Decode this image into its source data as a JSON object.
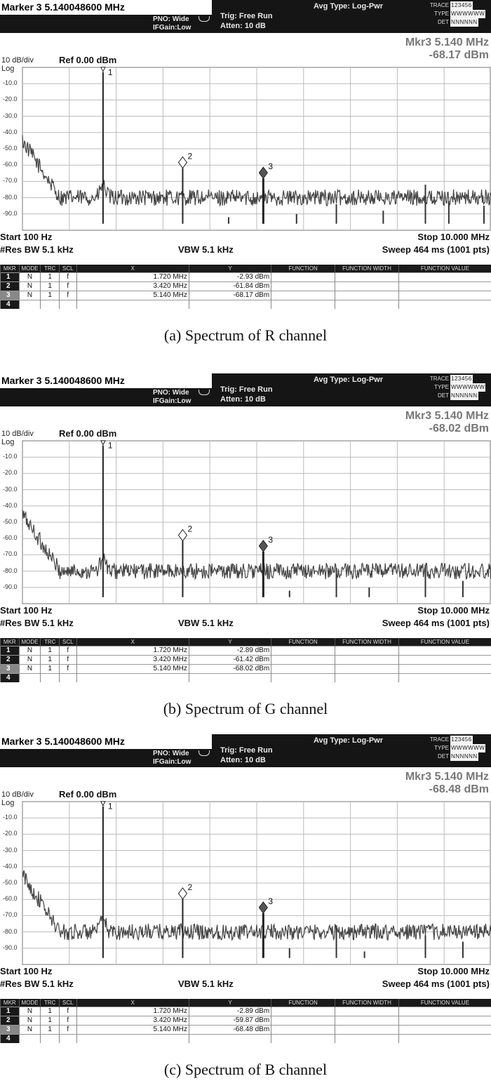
{
  "panels": [
    {
      "marker_title": "Marker 3 5.140048600 MHz",
      "pno": "PNO: Wide",
      "ifgain": "IFGain:Low",
      "trig": "Trig: Free Run",
      "atten": "Atten: 10 dB",
      "avg_type": "Avg Type: Log-Pwr",
      "trace_label": "TRACE",
      "trace_value": "123456",
      "type_label": "TYPE",
      "type_value": "WWWWWW",
      "det_label": "DET",
      "det_value": "NNNNNN",
      "mkr_readout_freq": "Mkr3 5.140 MHz",
      "mkr_readout_level": "-68.17 dBm",
      "scale": "10 dB/div",
      "log": "Log",
      "ref": "Ref 0.00 dBm",
      "y_tick_labels": [
        "-10.0",
        "-20.0",
        "-30.0",
        "-40.0",
        "-50.0",
        "-60.0",
        "-70.0",
        "-80.0",
        "-90.0"
      ],
      "start": "Start 100 Hz",
      "stop": "Stop 10.000 MHz",
      "res_bw": "#Res BW 5.1 kHz",
      "vbw": "VBW 5.1 kHz",
      "sweep": "Sweep  464 ms (1001 pts)",
      "table_headers": [
        "MKR",
        "MODE",
        "TRC",
        "SCL",
        "X",
        "Y",
        "FUNCTION",
        "FUNCTION WIDTH",
        "FUNCTION VALUE"
      ],
      "rows": [
        {
          "n": "1",
          "mode": "N",
          "trc": "1",
          "scl": "f",
          "x": "1.720 MHz",
          "y": "-2.93 dBm"
        },
        {
          "n": "2",
          "mode": "N",
          "trc": "1",
          "scl": "f",
          "x": "3.420 MHz",
          "y": "-61.84 dBm"
        },
        {
          "n": "3",
          "mode": "N",
          "trc": "1",
          "scl": "f",
          "x": "5.140 MHz",
          "y": "-68.17 dBm"
        },
        {
          "n": "4",
          "mode": "",
          "trc": "",
          "scl": "",
          "x": "",
          "y": ""
        }
      ],
      "caption": "(a) Spectrum of R channel"
    },
    {
      "marker_title": "Marker 3 5.140048600 MHz",
      "pno": "PNO: Wide",
      "ifgain": "IFGain:Low",
      "trig": "Trig: Free Run",
      "atten": "Atten: 10 dB",
      "avg_type": "Avg Type: Log-Pwr",
      "trace_label": "TRACE",
      "trace_value": "123456",
      "type_label": "TYPE",
      "type_value": "WWWWWW",
      "det_label": "DET",
      "det_value": "NNNNNN",
      "mkr_readout_freq": "Mkr3 5.140 MHz",
      "mkr_readout_level": "-68.02 dBm",
      "scale": "10 dB/div",
      "log": "Log",
      "ref": "Ref 0.00 dBm",
      "y_tick_labels": [
        "-10.0",
        "-20.0",
        "-30.0",
        "-40.0",
        "-50.0",
        "-60.0",
        "-70.0",
        "-80.0",
        "-90.0"
      ],
      "start": "Start 100 Hz",
      "stop": "Stop 10.000 MHz",
      "res_bw": "#Res BW 5.1 kHz",
      "vbw": "VBW 5.1 kHz",
      "sweep": "Sweep  464 ms (1001 pts)",
      "table_headers": [
        "MKR",
        "MODE",
        "TRC",
        "SCL",
        "X",
        "Y",
        "FUNCTION",
        "FUNCTION WIDTH",
        "FUNCTION VALUE"
      ],
      "rows": [
        {
          "n": "1",
          "mode": "N",
          "trc": "1",
          "scl": "f",
          "x": "1.720 MHz",
          "y": "-2.89 dBm"
        },
        {
          "n": "2",
          "mode": "N",
          "trc": "1",
          "scl": "f",
          "x": "3.420 MHz",
          "y": "-61.42 dBm"
        },
        {
          "n": "3",
          "mode": "N",
          "trc": "1",
          "scl": "f",
          "x": "5.140 MHz",
          "y": "-68.02 dBm"
        },
        {
          "n": "4",
          "mode": "",
          "trc": "",
          "scl": "",
          "x": "",
          "y": ""
        }
      ],
      "caption": "(b) Spectrum of G channel"
    },
    {
      "marker_title": "Marker 3 5.140048600 MHz",
      "pno": "PNO: Wide",
      "ifgain": "IFGain:Low",
      "trig": "Trig: Free Run",
      "atten": "Atten: 10 dB",
      "avg_type": "Avg Type: Log-Pwr",
      "trace_label": "TRACE",
      "trace_value": "123456",
      "type_label": "TYPE",
      "type_value": "WWWWWW",
      "det_label": "DET",
      "det_value": "NNNNNN",
      "mkr_readout_freq": "Mkr3 5.140 MHz",
      "mkr_readout_level": "-68.48 dBm",
      "scale": "10 dB/div",
      "log": "Log",
      "ref": "Ref 0.00 dBm",
      "y_tick_labels": [
        "-10.0",
        "-20.0",
        "-30.0",
        "-40.0",
        "-50.0",
        "-60.0",
        "-70.0",
        "-80.0",
        "-90.0"
      ],
      "start": "Start 100 Hz",
      "stop": "Stop 10.000 MHz",
      "res_bw": "#Res BW 5.1 kHz",
      "vbw": "VBW 5.1 kHz",
      "sweep": "Sweep  464 ms (1001 pts)",
      "table_headers": [
        "MKR",
        "MODE",
        "TRC",
        "SCL",
        "X",
        "Y",
        "FUNCTION",
        "FUNCTION WIDTH",
        "FUNCTION VALUE"
      ],
      "rows": [
        {
          "n": "1",
          "mode": "N",
          "trc": "1",
          "scl": "f",
          "x": "1.720 MHz",
          "y": "-2.89 dBm"
        },
        {
          "n": "2",
          "mode": "N",
          "trc": "1",
          "scl": "f",
          "x": "3.420 MHz",
          "y": "-59.87 dBm"
        },
        {
          "n": "3",
          "mode": "N",
          "trc": "1",
          "scl": "f",
          "x": "5.140 MHz",
          "y": "-68.48 dBm"
        },
        {
          "n": "4",
          "mode": "",
          "trc": "",
          "scl": "",
          "x": "",
          "y": ""
        }
      ],
      "caption": "(c) Spectrum of B channel"
    }
  ],
  "chart_data": [
    {
      "type": "line",
      "title": "(a) Spectrum of R channel",
      "xlabel": "",
      "ylabel": "",
      "xlim_mhz": [
        0.0001,
        10.0
      ],
      "ylim_dbm": [
        -100,
        0
      ],
      "grid": true,
      "markers": [
        {
          "n": 1,
          "x_mhz": 1.72,
          "y_dbm": -2.93
        },
        {
          "n": 2,
          "x_mhz": 3.42,
          "y_dbm": -61.84
        },
        {
          "n": 3,
          "x_mhz": 5.14,
          "y_dbm": -68.17
        }
      ],
      "spurs": [
        {
          "x_mhz": 4.4,
          "y_dbm": -92
        },
        {
          "x_mhz": 5.85,
          "y_dbm": -90
        },
        {
          "x_mhz": 6.7,
          "y_dbm": -84
        },
        {
          "x_mhz": 7.7,
          "y_dbm": -88
        },
        {
          "x_mhz": 8.6,
          "y_dbm": -72
        },
        {
          "x_mhz": 9.1,
          "y_dbm": -82
        },
        {
          "x_mhz": 9.85,
          "y_dbm": -85
        }
      ],
      "noise_floor_dbm": -96
    },
    {
      "type": "line",
      "title": "(b) Spectrum of G channel",
      "xlabel": "",
      "ylabel": "",
      "xlim_mhz": [
        0.0001,
        10.0
      ],
      "ylim_dbm": [
        -100,
        0
      ],
      "grid": true,
      "markers": [
        {
          "n": 1,
          "x_mhz": 1.72,
          "y_dbm": -2.89
        },
        {
          "n": 2,
          "x_mhz": 3.42,
          "y_dbm": -61.42
        },
        {
          "n": 3,
          "x_mhz": 5.14,
          "y_dbm": -68.02
        }
      ],
      "spurs": [
        {
          "x_mhz": 5.7,
          "y_dbm": -92
        },
        {
          "x_mhz": 6.7,
          "y_dbm": -78
        },
        {
          "x_mhz": 7.4,
          "y_dbm": -90
        },
        {
          "x_mhz": 8.6,
          "y_dbm": -76
        },
        {
          "x_mhz": 9.4,
          "y_dbm": -86
        }
      ],
      "noise_floor_dbm": -96
    },
    {
      "type": "line",
      "title": "(c) Spectrum of B channel",
      "xlabel": "",
      "ylabel": "",
      "xlim_mhz": [
        0.0001,
        10.0
      ],
      "ylim_dbm": [
        -100,
        0
      ],
      "grid": true,
      "markers": [
        {
          "n": 1,
          "x_mhz": 1.72,
          "y_dbm": -2.89
        },
        {
          "n": 2,
          "x_mhz": 3.42,
          "y_dbm": -59.87
        },
        {
          "n": 3,
          "x_mhz": 5.14,
          "y_dbm": -68.48
        }
      ],
      "spurs": [
        {
          "x_mhz": 5.7,
          "y_dbm": -90
        },
        {
          "x_mhz": 6.7,
          "y_dbm": -76
        },
        {
          "x_mhz": 7.3,
          "y_dbm": -92
        },
        {
          "x_mhz": 8.6,
          "y_dbm": -82
        },
        {
          "x_mhz": 9.4,
          "y_dbm": -86
        }
      ],
      "noise_floor_dbm": -96
    }
  ]
}
